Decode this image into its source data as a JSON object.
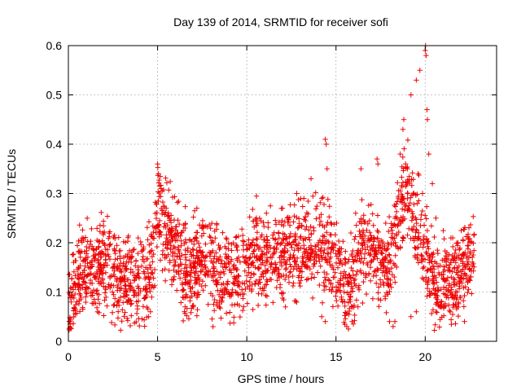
{
  "chart_data": {
    "type": "scatter",
    "title": "Day 139 of 2014, SRMTID for receiver sofi",
    "xlabel": "GPS time / hours",
    "ylabel": "SRMTID / TECUs",
    "xlim": [
      0,
      24
    ],
    "ylim": [
      0,
      0.6
    ],
    "xticks": [
      0,
      5,
      10,
      15,
      20
    ],
    "yticks": [
      0,
      0.1,
      0.2,
      0.3,
      0.4,
      0.5,
      0.6
    ],
    "grid": true,
    "marker": "+",
    "color": "#ee0000",
    "trend": [
      [
        0.0,
        0.06
      ],
      [
        0.3,
        0.11
      ],
      [
        0.7,
        0.13
      ],
      [
        1.0,
        0.15
      ],
      [
        1.5,
        0.14
      ],
      [
        2.0,
        0.17
      ],
      [
        2.5,
        0.13
      ],
      [
        3.0,
        0.11
      ],
      [
        3.5,
        0.12
      ],
      [
        4.0,
        0.12
      ],
      [
        4.5,
        0.13
      ],
      [
        4.8,
        0.18
      ],
      [
        5.0,
        0.29
      ],
      [
        5.3,
        0.24
      ],
      [
        5.6,
        0.22
      ],
      [
        6.0,
        0.19
      ],
      [
        6.5,
        0.15
      ],
      [
        7.0,
        0.14
      ],
      [
        7.5,
        0.17
      ],
      [
        8.0,
        0.16
      ],
      [
        8.5,
        0.13
      ],
      [
        9.0,
        0.14
      ],
      [
        9.5,
        0.13
      ],
      [
        10.0,
        0.15
      ],
      [
        10.5,
        0.18
      ],
      [
        11.0,
        0.16
      ],
      [
        11.5,
        0.17
      ],
      [
        12.0,
        0.18
      ],
      [
        12.5,
        0.19
      ],
      [
        13.0,
        0.18
      ],
      [
        13.5,
        0.2
      ],
      [
        14.0,
        0.19
      ],
      [
        14.5,
        0.18
      ],
      [
        15.0,
        0.15
      ],
      [
        15.5,
        0.12
      ],
      [
        16.0,
        0.13
      ],
      [
        16.5,
        0.2
      ],
      [
        17.0,
        0.18
      ],
      [
        17.5,
        0.16
      ],
      [
        18.0,
        0.15
      ],
      [
        18.5,
        0.25
      ],
      [
        19.0,
        0.3
      ],
      [
        19.3,
        0.27
      ],
      [
        19.6,
        0.22
      ],
      [
        20.0,
        0.17
      ],
      [
        20.5,
        0.12
      ],
      [
        21.0,
        0.11
      ],
      [
        21.5,
        0.12
      ],
      [
        22.0,
        0.14
      ],
      [
        22.3,
        0.16
      ],
      [
        22.7,
        0.17
      ]
    ],
    "spikes": [
      [
        5.0,
        0.36
      ],
      [
        5.05,
        0.34
      ],
      [
        7.2,
        0.27
      ],
      [
        11.1,
        0.26
      ],
      [
        12.0,
        0.27
      ],
      [
        12.8,
        0.3
      ],
      [
        13.2,
        0.29
      ],
      [
        13.6,
        0.33
      ],
      [
        14.2,
        0.29
      ],
      [
        14.4,
        0.41
      ],
      [
        14.45,
        0.4
      ],
      [
        14.5,
        0.35
      ],
      [
        16.1,
        0.26
      ],
      [
        16.4,
        0.35
      ],
      [
        17.3,
        0.37
      ],
      [
        17.35,
        0.36
      ],
      [
        18.6,
        0.38
      ],
      [
        18.75,
        0.43
      ],
      [
        18.8,
        0.45
      ],
      [
        18.9,
        0.36
      ],
      [
        19.0,
        0.35
      ],
      [
        19.2,
        0.5
      ],
      [
        19.5,
        0.53
      ],
      [
        19.6,
        0.34
      ],
      [
        19.7,
        0.55
      ],
      [
        20.0,
        0.59
      ],
      [
        20.02,
        0.6
      ],
      [
        20.05,
        0.58
      ],
      [
        20.1,
        0.47
      ],
      [
        20.12,
        0.45
      ],
      [
        20.2,
        0.38
      ],
      [
        20.4,
        0.32
      ],
      [
        19.85,
        0.3
      ],
      [
        20.6,
        0.25
      ]
    ],
    "lows": [
      [
        0.05,
        0.04
      ],
      [
        0.1,
        0.035
      ],
      [
        4.5,
        0.05
      ],
      [
        4.6,
        0.06
      ],
      [
        14.2,
        0.05
      ],
      [
        14.4,
        0.04
      ],
      [
        15.6,
        0.03
      ],
      [
        15.7,
        0.025
      ],
      [
        15.9,
        0.04
      ],
      [
        18.0,
        0.04
      ],
      [
        18.2,
        0.03
      ],
      [
        18.3,
        0.04
      ],
      [
        22.2,
        0.04
      ],
      [
        19.2,
        0.05
      ],
      [
        19.5,
        0.06
      ],
      [
        21.4,
        0.06
      ]
    ],
    "scatter_spread": 0.045,
    "x_range": [
      0,
      22.75
    ],
    "n_points": 2400
  }
}
